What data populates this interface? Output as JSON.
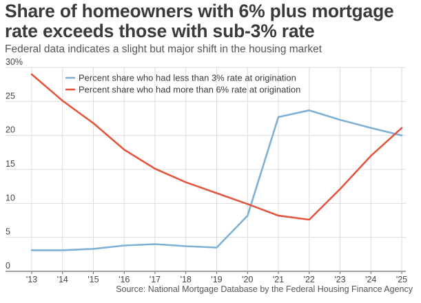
{
  "title": "Share of homeowners with 6% plus mortgage rate exceeds those with sub-3% rate",
  "subtitle": "Federal data indicates a slight but major shift in the housing market",
  "source": "Source: National Mortgage Database by the Federal Housing Finance Agency",
  "chart_data": {
    "type": "line",
    "x": [
      "'13",
      "'14",
      "'15",
      "'16",
      "'17",
      "'18",
      "'19",
      "'20",
      "'21",
      "'22",
      "'23",
      "'24",
      "'25"
    ],
    "ylim": [
      0,
      30
    ],
    "yticks": [
      "0",
      "5",
      "10",
      "15",
      "20",
      "25",
      "30%"
    ],
    "grid": true,
    "legend_position": "top-right",
    "series": [
      {
        "name": "Percent share who had less than 3% rate at origination",
        "color": "#7fb0d4",
        "values": [
          3.1,
          3.1,
          3.3,
          3.8,
          4.0,
          3.7,
          3.5,
          8.2,
          22.7,
          23.7,
          22.3,
          21.1,
          20.0
        ]
      },
      {
        "name": "Percent share who had more than 6% rate at origination",
        "color": "#e0573d",
        "values": [
          29.0,
          25.1,
          21.8,
          17.9,
          15.1,
          13.1,
          11.5,
          9.9,
          8.2,
          7.6,
          12.1,
          17.0,
          21.1
        ]
      }
    ]
  }
}
